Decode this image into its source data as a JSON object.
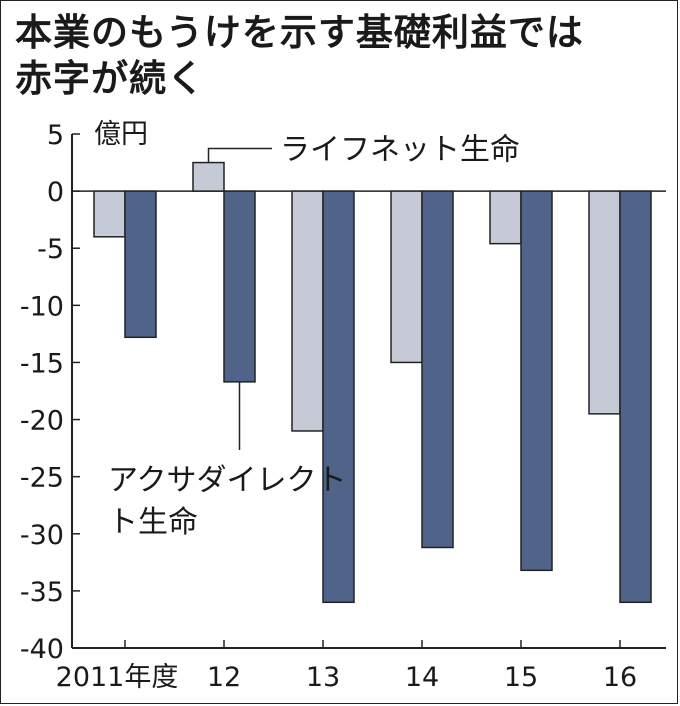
{
  "chart_data": {
    "type": "bar",
    "title_lines": [
      "本業のもうけを示す基礎利益では",
      "赤字が続く"
    ],
    "unit_label": "億円",
    "categories": [
      "2011年度",
      "12",
      "13",
      "14",
      "15",
      "16"
    ],
    "series": [
      {
        "name": "ライフネット生命",
        "values": [
          -4,
          2.5,
          -21,
          -15,
          -4.6,
          -19.5
        ],
        "color": "#c5cad6"
      },
      {
        "name": "アクサダイレクト生命",
        "values": [
          -12.8,
          -16.7,
          -36,
          -31.2,
          -33.2,
          -36
        ],
        "color": "#4f6488"
      }
    ],
    "annotation_lines": {
      "series0": [
        "ライフネット生命"
      ],
      "series1": [
        "アクサダイレクト",
        "ト生命"
      ]
    },
    "ylim": [
      -40,
      5
    ],
    "yticks": [
      5,
      0,
      -5,
      -10,
      -15,
      -20,
      -25,
      -30,
      -35,
      -40
    ],
    "ytick_labels": [
      "5",
      "0",
      "-5",
      "-10",
      "-15",
      "-20",
      "-25",
      "-30",
      "-35",
      "-40"
    ],
    "grid": false,
    "legend": "none"
  }
}
